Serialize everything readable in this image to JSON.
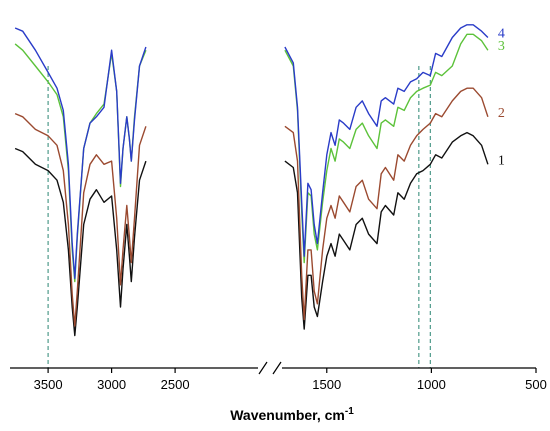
{
  "chart_data": {
    "type": "line",
    "xlabel": "Wavenumber, cm",
    "xlabel_superscript": "-1",
    "x_axis": {
      "reversed": true,
      "broken": true,
      "segments": [
        [
          3800,
          1800
        ],
        [
          1800,
          500
        ]
      ],
      "break_range": [
        1800,
        1700
      ],
      "ticks": [
        3500,
        3000,
        2500,
        1500,
        1000,
        500
      ],
      "tick_labels": [
        "3500",
        "3000",
        "2500",
        "1500",
        "1000",
        "500"
      ]
    },
    "y_axis": {
      "visible": false,
      "units": "arbitrary"
    },
    "grid": false,
    "reference_lines": [
      {
        "x": 3500,
        "color": "#4e9a8a",
        "style": "dashed"
      },
      {
        "x": 1060,
        "color": "#4e9a8a",
        "style": "dashed"
      },
      {
        "x": 1005,
        "color": "#4e9a8a",
        "style": "dashed"
      }
    ],
    "series": [
      {
        "name": "1",
        "color": "#111111",
        "points": [
          [
            3760,
            0.62
          ],
          [
            3700,
            0.61
          ],
          [
            3600,
            0.57
          ],
          [
            3500,
            0.55
          ],
          [
            3430,
            0.52
          ],
          [
            3380,
            0.45
          ],
          [
            3340,
            0.3
          ],
          [
            3310,
            0.12
          ],
          [
            3290,
            0.03
          ],
          [
            3270,
            0.12
          ],
          [
            3220,
            0.38
          ],
          [
            3170,
            0.46
          ],
          [
            3120,
            0.49
          ],
          [
            3060,
            0.45
          ],
          [
            3000,
            0.47
          ],
          [
            2960,
            0.3
          ],
          [
            2930,
            0.12
          ],
          [
            2910,
            0.24
          ],
          [
            2880,
            0.38
          ],
          [
            2860,
            0.28
          ],
          [
            2845,
            0.2
          ],
          [
            2820,
            0.34
          ],
          [
            2780,
            0.52
          ],
          [
            2730,
            0.58
          ],
          [
            1700,
            0.58
          ],
          [
            1660,
            0.56
          ],
          [
            1640,
            0.48
          ],
          [
            1620,
            0.15
          ],
          [
            1608,
            0.05
          ],
          [
            1590,
            0.22
          ],
          [
            1575,
            0.22
          ],
          [
            1560,
            0.12
          ],
          [
            1545,
            0.09
          ],
          [
            1520,
            0.2
          ],
          [
            1500,
            0.28
          ],
          [
            1480,
            0.32
          ],
          [
            1460,
            0.28
          ],
          [
            1440,
            0.35
          ],
          [
            1420,
            0.33
          ],
          [
            1390,
            0.3
          ],
          [
            1360,
            0.38
          ],
          [
            1330,
            0.4
          ],
          [
            1300,
            0.35
          ],
          [
            1260,
            0.32
          ],
          [
            1240,
            0.42
          ],
          [
            1220,
            0.44
          ],
          [
            1180,
            0.41
          ],
          [
            1160,
            0.48
          ],
          [
            1130,
            0.46
          ],
          [
            1100,
            0.51
          ],
          [
            1070,
            0.54
          ],
          [
            1040,
            0.55
          ],
          [
            1005,
            0.57
          ],
          [
            980,
            0.6
          ],
          [
            950,
            0.59
          ],
          [
            900,
            0.64
          ],
          [
            860,
            0.66
          ],
          [
            830,
            0.67
          ],
          [
            800,
            0.66
          ],
          [
            760,
            0.63
          ],
          [
            730,
            0.57
          ]
        ]
      },
      {
        "name": "2",
        "color": "#9b4a30",
        "points": [
          [
            3760,
            0.73
          ],
          [
            3700,
            0.72
          ],
          [
            3600,
            0.68
          ],
          [
            3500,
            0.66
          ],
          [
            3430,
            0.63
          ],
          [
            3380,
            0.55
          ],
          [
            3340,
            0.38
          ],
          [
            3310,
            0.16
          ],
          [
            3290,
            0.06
          ],
          [
            3270,
            0.17
          ],
          [
            3220,
            0.48
          ],
          [
            3170,
            0.57
          ],
          [
            3120,
            0.6
          ],
          [
            3060,
            0.57
          ],
          [
            3000,
            0.58
          ],
          [
            2960,
            0.4
          ],
          [
            2930,
            0.19
          ],
          [
            2910,
            0.3
          ],
          [
            2880,
            0.44
          ],
          [
            2860,
            0.34
          ],
          [
            2845,
            0.26
          ],
          [
            2820,
            0.4
          ],
          [
            2780,
            0.63
          ],
          [
            2730,
            0.69
          ],
          [
            1700,
            0.69
          ],
          [
            1660,
            0.67
          ],
          [
            1640,
            0.58
          ],
          [
            1620,
            0.22
          ],
          [
            1608,
            0.08
          ],
          [
            1590,
            0.3
          ],
          [
            1575,
            0.3
          ],
          [
            1560,
            0.17
          ],
          [
            1545,
            0.13
          ],
          [
            1520,
            0.3
          ],
          [
            1500,
            0.4
          ],
          [
            1480,
            0.44
          ],
          [
            1460,
            0.4
          ],
          [
            1440,
            0.47
          ],
          [
            1420,
            0.45
          ],
          [
            1390,
            0.42
          ],
          [
            1360,
            0.5
          ],
          [
            1330,
            0.52
          ],
          [
            1300,
            0.46
          ],
          [
            1260,
            0.43
          ],
          [
            1240,
            0.54
          ],
          [
            1220,
            0.56
          ],
          [
            1180,
            0.52
          ],
          [
            1160,
            0.6
          ],
          [
            1130,
            0.58
          ],
          [
            1100,
            0.63
          ],
          [
            1070,
            0.66
          ],
          [
            1040,
            0.68
          ],
          [
            1005,
            0.7
          ],
          [
            980,
            0.73
          ],
          [
            950,
            0.72
          ],
          [
            900,
            0.77
          ],
          [
            860,
            0.8
          ],
          [
            830,
            0.81
          ],
          [
            800,
            0.81
          ],
          [
            760,
            0.78
          ],
          [
            730,
            0.72
          ]
        ]
      },
      {
        "name": "3",
        "color": "#5cc23a",
        "points": [
          [
            3760,
            0.95
          ],
          [
            3700,
            0.93
          ],
          [
            3600,
            0.88
          ],
          [
            3500,
            0.83
          ],
          [
            3430,
            0.79
          ],
          [
            3380,
            0.72
          ],
          [
            3340,
            0.55
          ],
          [
            3310,
            0.3
          ],
          [
            3290,
            0.2
          ],
          [
            3270,
            0.34
          ],
          [
            3220,
            0.62
          ],
          [
            3170,
            0.7
          ],
          [
            3120,
            0.73
          ],
          [
            3060,
            0.76
          ],
          [
            3000,
            0.92
          ],
          [
            2960,
            0.8
          ],
          [
            2930,
            0.5
          ],
          [
            2910,
            0.62
          ],
          [
            2880,
            0.72
          ],
          [
            2860,
            0.65
          ],
          [
            2845,
            0.58
          ],
          [
            2820,
            0.72
          ],
          [
            2780,
            0.88
          ],
          [
            2730,
            0.93
          ],
          [
            1700,
            0.93
          ],
          [
            1660,
            0.88
          ],
          [
            1640,
            0.74
          ],
          [
            1620,
            0.42
          ],
          [
            1608,
            0.26
          ],
          [
            1590,
            0.48
          ],
          [
            1575,
            0.47
          ],
          [
            1560,
            0.35
          ],
          [
            1545,
            0.3
          ],
          [
            1520,
            0.45
          ],
          [
            1500,
            0.55
          ],
          [
            1480,
            0.62
          ],
          [
            1460,
            0.58
          ],
          [
            1440,
            0.65
          ],
          [
            1420,
            0.64
          ],
          [
            1390,
            0.62
          ],
          [
            1360,
            0.68
          ],
          [
            1330,
            0.7
          ],
          [
            1300,
            0.66
          ],
          [
            1260,
            0.62
          ],
          [
            1240,
            0.7
          ],
          [
            1220,
            0.71
          ],
          [
            1180,
            0.69
          ],
          [
            1160,
            0.75
          ],
          [
            1130,
            0.74
          ],
          [
            1100,
            0.78
          ],
          [
            1070,
            0.8
          ],
          [
            1040,
            0.81
          ],
          [
            1005,
            0.82
          ],
          [
            980,
            0.86
          ],
          [
            950,
            0.85
          ],
          [
            900,
            0.88
          ],
          [
            860,
            0.95
          ],
          [
            830,
            0.98
          ],
          [
            800,
            0.98
          ],
          [
            760,
            0.96
          ],
          [
            730,
            0.93
          ]
        ]
      },
      {
        "name": "4",
        "color": "#2a3cc8",
        "points": [
          [
            3760,
            1.0
          ],
          [
            3700,
            0.99
          ],
          [
            3600,
            0.93
          ],
          [
            3500,
            0.86
          ],
          [
            3430,
            0.81
          ],
          [
            3380,
            0.74
          ],
          [
            3340,
            0.57
          ],
          [
            3310,
            0.32
          ],
          [
            3290,
            0.21
          ],
          [
            3270,
            0.35
          ],
          [
            3220,
            0.62
          ],
          [
            3170,
            0.7
          ],
          [
            3120,
            0.72
          ],
          [
            3060,
            0.75
          ],
          [
            3000,
            0.93
          ],
          [
            2960,
            0.8
          ],
          [
            2930,
            0.51
          ],
          [
            2910,
            0.62
          ],
          [
            2880,
            0.72
          ],
          [
            2860,
            0.65
          ],
          [
            2845,
            0.58
          ],
          [
            2820,
            0.71
          ],
          [
            2780,
            0.88
          ],
          [
            2730,
            0.94
          ],
          [
            1700,
            0.94
          ],
          [
            1660,
            0.89
          ],
          [
            1640,
            0.75
          ],
          [
            1620,
            0.45
          ],
          [
            1608,
            0.28
          ],
          [
            1590,
            0.51
          ],
          [
            1575,
            0.49
          ],
          [
            1560,
            0.38
          ],
          [
            1545,
            0.32
          ],
          [
            1520,
            0.48
          ],
          [
            1500,
            0.6
          ],
          [
            1480,
            0.67
          ],
          [
            1460,
            0.63
          ],
          [
            1440,
            0.71
          ],
          [
            1420,
            0.7
          ],
          [
            1390,
            0.68
          ],
          [
            1360,
            0.75
          ],
          [
            1330,
            0.77
          ],
          [
            1300,
            0.73
          ],
          [
            1260,
            0.69
          ],
          [
            1240,
            0.77
          ],
          [
            1220,
            0.78
          ],
          [
            1180,
            0.76
          ],
          [
            1160,
            0.81
          ],
          [
            1130,
            0.8
          ],
          [
            1100,
            0.83
          ],
          [
            1070,
            0.84
          ],
          [
            1040,
            0.86
          ],
          [
            1005,
            0.85
          ],
          [
            980,
            0.92
          ],
          [
            950,
            0.91
          ],
          [
            900,
            0.97
          ],
          [
            860,
            1.0
          ],
          [
            830,
            1.01
          ],
          [
            800,
            1.01
          ],
          [
            760,
            0.99
          ],
          [
            730,
            0.97
          ]
        ]
      }
    ]
  }
}
